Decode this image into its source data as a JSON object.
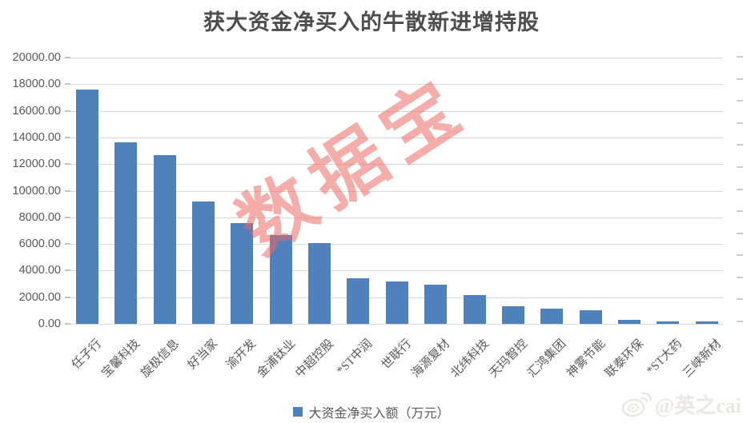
{
  "title": "获大资金净买入的牛散新进增持股",
  "watermark_text": "数据宝",
  "credit": {
    "text": "@英之cai"
  },
  "legend": {
    "label": "大资金净买入额（万元）",
    "swatch_color": "#4F81BD"
  },
  "colors": {
    "bar": "#4F81BD",
    "gridline": "#D9D9D9",
    "axis_text": "#595959",
    "title_text": "#4E4E4E",
    "watermark": "rgba(236,106,101,0.55)",
    "credit_text": "#EBE8E1"
  },
  "chart_data": {
    "type": "bar",
    "title": "获大资金净买入的牛散新进增持股",
    "series_name": "大资金净买入额（万元）",
    "categories": [
      "任子行",
      "宝馨科技",
      "旋极信息",
      "好当家",
      "渝开发",
      "金浦钛业",
      "中超控股",
      "*ST中润",
      "世联行",
      "海源复材",
      "北纬科技",
      "天玛智控",
      "汇鸿集团",
      "神雾节能",
      "联泰环保",
      "*ST大药",
      "三峡新材"
    ],
    "values": [
      17590,
      13620,
      12700,
      9210,
      7590,
      6690,
      6090,
      3400,
      3180,
      2950,
      2160,
      1340,
      1150,
      1000,
      280,
      170,
      160
    ],
    "xlabel": "",
    "ylabel": "",
    "ylim": [
      0,
      20000
    ],
    "ytick_step": 2000,
    "ytick_decimals": 2,
    "grid": true,
    "legend_position": "bottom",
    "x_label_rotation_deg": 45,
    "right_axis_tick_count": 13
  }
}
